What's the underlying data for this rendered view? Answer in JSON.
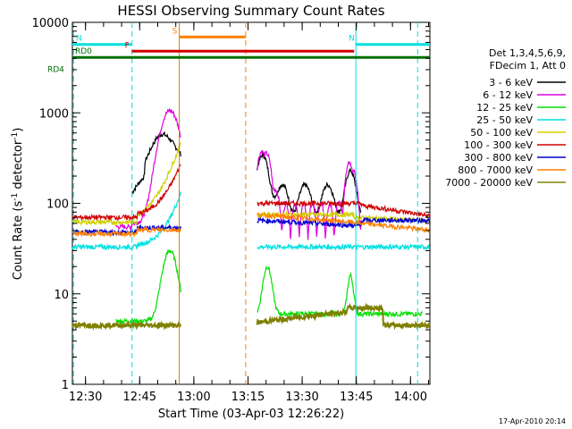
{
  "chart_data": {
    "type": "line",
    "title": "HESSI Observing Summary Count Rates",
    "xlabel": "Start Time (03-Apr-03 12:26:22)",
    "ylabel_main": "Count Rate (s",
    "ylabel_sup1": "-1",
    "ylabel_mid": " detector",
    "ylabel_sup2": "-1",
    "ylabel_end": ")",
    "y_scale": "log",
    "ylim": [
      1,
      10000
    ],
    "y_ticks": [
      {
        "value": 1,
        "label": "1"
      },
      {
        "value": 10,
        "label": "10"
      },
      {
        "value": 100,
        "label": "100"
      },
      {
        "value": 1000,
        "label": "1000"
      },
      {
        "value": 10000,
        "label": "10000"
      }
    ],
    "xlim_minutes": [
      0,
      99
    ],
    "x_ticks": [
      {
        "min": 3.63,
        "label": "12:30"
      },
      {
        "min": 18.63,
        "label": "12:45"
      },
      {
        "min": 33.63,
        "label": "13:00"
      },
      {
        "min": 48.63,
        "label": "13:15"
      },
      {
        "min": 63.63,
        "label": "13:30"
      },
      {
        "min": 78.63,
        "label": "13:45"
      },
      {
        "min": 93.63,
        "label": "14:00"
      }
    ],
    "legend_header": [
      "Det 1,3,4,5,6,9,",
      "FDecim 1, Att 0"
    ],
    "legend_position": "right",
    "series": [
      {
        "name": "3 - 6 keV",
        "color": "#000000"
      },
      {
        "name": "6 - 12 keV",
        "color": "#e000e0"
      },
      {
        "name": "12 - 25 keV",
        "color": "#00e000"
      },
      {
        "name": "25 - 50 keV",
        "color": "#00e0e0"
      },
      {
        "name": "50 - 100 keV",
        "color": "#d0d000"
      },
      {
        "name": "100 - 300 keV",
        "color": "#d00000"
      },
      {
        "name": "300 - 800 keV",
        "color": "#0000d0"
      },
      {
        "name": "800 - 7000 keV",
        "color": "#ff8000"
      },
      {
        "name": "7000 - 20000 keV",
        "color": "#808000"
      }
    ],
    "flag_bars": [
      {
        "label": "N",
        "color": "#00e0e0",
        "start_min": 0,
        "end_min": 16.5,
        "level": 5700
      },
      {
        "label": "N",
        "color": "#00e0e0",
        "start_min": 78.5,
        "end_min": 99,
        "level": 5700
      },
      {
        "label": "S",
        "color": "#ff8000",
        "start_min": 29.6,
        "end_min": 48.0,
        "level": 6900
      },
      {
        "label": "F",
        "color": "#d00000",
        "start_min": 16.5,
        "end_min": 78.0,
        "level": 4800
      },
      {
        "label": "RD0",
        "color": "#007000",
        "start_min": 0,
        "end_min": 99,
        "level": 4100
      },
      {
        "label": "RD4",
        "color": "#007000",
        "start_min": 0,
        "end_min": 0,
        "level": 3400
      }
    ],
    "vertical_markers": [
      {
        "min": 0.3,
        "color": "#00e0e0",
        "dash": true
      },
      {
        "min": 16.5,
        "color": "#00e0e0",
        "dash": true
      },
      {
        "min": 29.6,
        "color": "#d08000",
        "dash": false
      },
      {
        "min": 48.0,
        "color": "#ff8000",
        "dash": true
      },
      {
        "min": 78.5,
        "color": "#00e0e0",
        "dash": false
      },
      {
        "min": 95.6,
        "color": "#00e0e0",
        "dash": true
      }
    ],
    "gap_minutes": [
      30,
      50
    ]
  },
  "footer": {
    "date": "17-Apr-2010 20:14"
  }
}
